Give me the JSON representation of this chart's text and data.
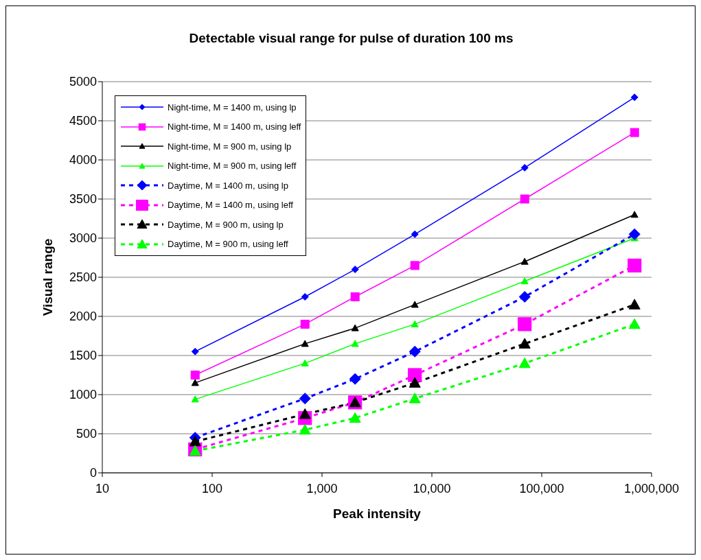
{
  "chart_data": {
    "type": "line",
    "title": "Detectable visual range for pulse of duration 100 ms",
    "xlabel": "Peak intensity",
    "ylabel": "Visual range",
    "log": "x",
    "x": [
      70,
      700,
      2000,
      7000,
      70000,
      700000
    ],
    "xlim": [
      10,
      1000000
    ],
    "xticks": [
      10,
      100,
      {
        "value": 1000,
        "label": "1,000"
      },
      {
        "value": 10000,
        "label": "10,000"
      },
      {
        "value": 100000,
        "label": "100,000"
      },
      {
        "value": 1000000,
        "label": "1,000,000"
      }
    ],
    "ylim": [
      0,
      5000
    ],
    "yticks": [
      0,
      500,
      1000,
      1500,
      2000,
      2500,
      3000,
      3500,
      4000,
      4500,
      5000
    ],
    "grid": "y",
    "legend": "top left",
    "series": [
      {
        "name": "Night-time, M = 1400 m, using lp",
        "color": "#0000ff",
        "marker": "diamond",
        "line_style": "solid",
        "values": [
          1550,
          2250,
          2600,
          3050,
          3900,
          4800
        ]
      },
      {
        "name": "Night-time, M = 1400 m, using leff",
        "color": "#ff00ff",
        "marker": "square",
        "line_style": "solid",
        "values": [
          1250,
          1900,
          2250,
          2650,
          3500,
          4350
        ]
      },
      {
        "name": "Night-time, M = 900 m, using lp",
        "color": "#000000",
        "marker": "triangle",
        "line_style": "solid",
        "values": [
          1150,
          1650,
          1850,
          2150,
          2700,
          3300
        ]
      },
      {
        "name": "Night-time, M = 900 m, using leff",
        "color": "#00ff00",
        "marker": "triangle",
        "line_style": "solid",
        "values": [
          940,
          1400,
          1650,
          1900,
          2450,
          3000
        ]
      },
      {
        "name": "Daytime, M = 1400 m, using lp",
        "color": "#0000ff",
        "marker": "diamond",
        "line_style": "dashed",
        "values": [
          450,
          950,
          1200,
          1550,
          2250,
          3050
        ]
      },
      {
        "name": "Daytime, M = 1400 m, using leff",
        "color": "#ff00ff",
        "marker": "square",
        "line_style": "dashed",
        "values": [
          300,
          700,
          900,
          1250,
          1900,
          2650
        ]
      },
      {
        "name": "Daytime, M = 900 m, using lp",
        "color": "#000000",
        "marker": "triangle",
        "line_style": "dashed",
        "values": [
          400,
          750,
          900,
          1150,
          1650,
          2150
        ]
      },
      {
        "name": "Daytime, M = 900 m, using leff",
        "color": "#00ff00",
        "marker": "triangle",
        "line_style": "dashed",
        "values": [
          280,
          550,
          700,
          950,
          1400,
          1900
        ]
      }
    ]
  }
}
